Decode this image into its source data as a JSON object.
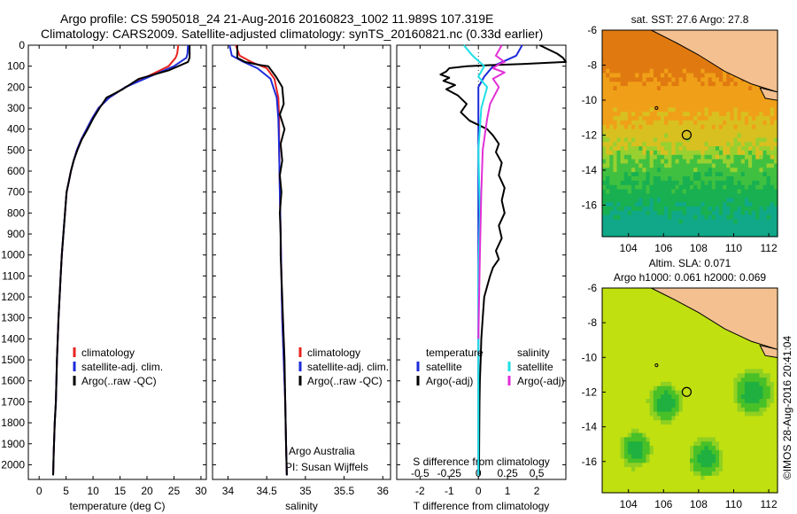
{
  "header": {
    "line1": "Argo profile: CS 5905018_24 21-Aug-2016 20160823_1002 11.989S 107.319E",
    "line2": "Climatology: CARS2009. Satellite-adjusted climatology: synTS_20160821.nc (0.33d earlier)"
  },
  "maps": {
    "sst_title": "sat. SST: 27.6 Argo: 27.8",
    "sla_title1": "Altim. SLA: 0.071",
    "sla_title2": "Argo h1000: 0.061 h2000: 0.069",
    "side_label": "©IMOS 28-Aug-2016 20:41:04",
    "lat_ticks": [
      -6,
      -8,
      -10,
      -12,
      -14,
      -16
    ],
    "lon_ticks": [
      104,
      106,
      108,
      110,
      112
    ],
    "float_position": {
      "lon": 107.319,
      "lat": -11.989
    }
  },
  "legend": {
    "climatology": "climatology",
    "satellite_adj": "satellite-adj. clim.",
    "argo_raw": "Argo(..raw -QC)",
    "temperature": "temperature",
    "salinity": "salinity",
    "satellite": "satellite",
    "argo_adj": "Argo(-adj)"
  },
  "annotations": {
    "argo_australia": "Argo Australia",
    "pi": "PI: Susan Wijffels"
  },
  "colors": {
    "climatology": "#e8231f",
    "satellite": "#1d2bd9",
    "argo": "#000000",
    "cyan": "#1fe0e6",
    "magenta": "#e22fd6"
  },
  "chart_data": [
    {
      "type": "line",
      "xlabel": "temperature (deg C)",
      "ylabel": "",
      "xlim": [
        -2,
        31
      ],
      "ylim": [
        2070,
        0
      ],
      "xticks": [
        0,
        5,
        10,
        15,
        20,
        25,
        30
      ],
      "yticks": [
        0,
        100,
        200,
        300,
        400,
        500,
        600,
        700,
        800,
        900,
        1000,
        1100,
        1200,
        1300,
        1400,
        1500,
        1600,
        1700,
        1800,
        1900,
        2000
      ],
      "series": [
        {
          "name": "climatology",
          "key": "clim",
          "x": [
            25.8,
            25.6,
            25.3,
            24,
            20,
            16,
            13,
            11,
            9.8,
            8.8,
            7.8,
            7,
            6.4,
            5.9,
            5.5,
            5.1,
            4.8,
            4.5,
            4.2,
            4,
            3.8,
            3.6,
            3.3,
            3.1,
            2.9,
            2.7,
            2.6
          ],
          "y": [
            0,
            40,
            60,
            100,
            150,
            200,
            250,
            300,
            350,
            400,
            450,
            500,
            550,
            600,
            650,
            700,
            800,
            900,
            1000,
            1100,
            1200,
            1300,
            1500,
            1700,
            1800,
            1950,
            2050
          ]
        },
        {
          "name": "satellite-adj. clim.",
          "key": "sat",
          "x": [
            27.6,
            27.5,
            27.3,
            25,
            20.5,
            16,
            13,
            11,
            9.8,
            8.8,
            7.8,
            7,
            6.4,
            5.9,
            5.5,
            5.1,
            4.8,
            4.5,
            4.2,
            4,
            3.8,
            3.6,
            3.3,
            3.1,
            2.9,
            2.7,
            2.6
          ],
          "y": [
            0,
            40,
            60,
            100,
            150,
            200,
            250,
            300,
            350,
            400,
            450,
            500,
            550,
            600,
            650,
            700,
            800,
            900,
            1000,
            1100,
            1200,
            1300,
            1500,
            1700,
            1800,
            1950,
            2050
          ]
        },
        {
          "name": "Argo(..raw -QC)",
          "key": "argo",
          "x": [
            27.9,
            27.9,
            27.6,
            24,
            18.5,
            15.5,
            12.5,
            11.2,
            10,
            9,
            7.9,
            7.1,
            6.4,
            5.9,
            5.5,
            5.1,
            4.8,
            4.5,
            4.2,
            4,
            3.8,
            3.6,
            3.3,
            3.1,
            2.9,
            2.7,
            2.6
          ],
          "y": [
            0,
            60,
            80,
            120,
            160,
            210,
            250,
            300,
            350,
            400,
            450,
            500,
            550,
            600,
            650,
            700,
            800,
            900,
            1000,
            1100,
            1200,
            1300,
            1500,
            1700,
            1800,
            1950,
            2050
          ]
        }
      ]
    },
    {
      "type": "line",
      "xlabel": "salinity",
      "ylabel": "",
      "xlim": [
        33.8,
        36.1
      ],
      "ylim": [
        2070,
        0
      ],
      "xticks": [
        34,
        34.5,
        35,
        35.5,
        36
      ],
      "series": [
        {
          "name": "climatology",
          "key": "clim",
          "x": [
            34.1,
            34.15,
            34.3,
            34.5,
            34.6,
            34.65,
            34.66,
            34.66,
            34.67,
            34.68,
            34.69,
            34.7,
            34.72,
            34.74,
            34.75,
            34.76
          ],
          "y": [
            0,
            50,
            80,
            110,
            160,
            250,
            350,
            500,
            700,
            900,
            1100,
            1300,
            1500,
            1700,
            1900,
            2050
          ]
        },
        {
          "name": "satellite-adj. clim.",
          "key": "sat",
          "x": [
            34.02,
            34.05,
            34.2,
            34.38,
            34.55,
            34.63,
            34.65,
            34.66,
            34.67,
            34.68,
            34.69,
            34.7,
            34.72,
            34.74,
            34.75,
            34.76
          ],
          "y": [
            0,
            50,
            80,
            110,
            160,
            250,
            350,
            500,
            700,
            900,
            1100,
            1300,
            1500,
            1700,
            1900,
            2050
          ]
        },
        {
          "name": "Argo(..raw -QC)",
          "key": "argo",
          "x": [
            34.12,
            34.12,
            34.22,
            34.42,
            34.52,
            34.62,
            34.7,
            34.72,
            34.67,
            34.73,
            34.68,
            34.7,
            34.67,
            34.69,
            34.67,
            34.68,
            34.68,
            34.69,
            34.7,
            34.71,
            34.73,
            34.74,
            34.75,
            34.76
          ],
          "y": [
            0,
            60,
            80,
            95,
            100,
            150,
            200,
            280,
            330,
            400,
            470,
            550,
            620,
            700,
            800,
            900,
            1000,
            1100,
            1200,
            1300,
            1500,
            1700,
            1900,
            2050
          ]
        }
      ]
    },
    {
      "type": "line",
      "xlabel": "T difference from climatology",
      "xlabel2": "S difference from climatology",
      "ylabel": "",
      "xlim": [
        -2.8,
        3
      ],
      "ylim": [
        2070,
        0
      ],
      "xticks": [
        -2,
        -1,
        0,
        1,
        2
      ],
      "xticks_s": [
        "-0.5",
        "-0.25",
        "0",
        "0.25",
        "0.5"
      ],
      "xticks_s_pos": [
        -2,
        -1,
        0,
        1,
        2
      ],
      "series": [
        {
          "name": "temperature satellite",
          "key": "sat",
          "x": [
            1.5,
            1.3,
            0.5,
            0.2,
            0,
            0,
            0,
            0,
            0,
            0,
            0,
            0
          ],
          "y": [
            0,
            50,
            100,
            150,
            200,
            300,
            500,
            800,
            1100,
            1400,
            1700,
            2050
          ]
        },
        {
          "name": "temperature Argo(-adj)",
          "key": "argo",
          "x": [
            2.1,
            2.7,
            2.9,
            3.0,
            1.5,
            0.4,
            -0.4,
            -1.0,
            -1.1,
            -1.3,
            -1.0,
            -1.2,
            -0.8,
            -1.1,
            -0.7,
            -0.4,
            -0.6,
            -0.3,
            0.3,
            0.5,
            0.7,
            0.6,
            0.8,
            0.7,
            0.9,
            0.8,
            0.9,
            0.7,
            0.8,
            0.6,
            0.7,
            0.5,
            0.4,
            0.3,
            0.2,
            0.15,
            0.1,
            0.08,
            0.05,
            0.04,
            0.03,
            0.02
          ],
          "y": [
            0,
            40,
            60,
            80,
            90,
            95,
            100,
            110,
            125,
            140,
            155,
            170,
            190,
            210,
            240,
            280,
            320,
            360,
            400,
            430,
            470,
            510,
            560,
            620,
            680,
            740,
            800,
            860,
            920,
            980,
            1020,
            1060,
            1100,
            1150,
            1200,
            1300,
            1400,
            1500,
            1600,
            1700,
            1850,
            2050
          ]
        },
        {
          "name": "salinity satellite",
          "key": "cyan",
          "x": [
            -0.5,
            -0.2,
            0.2,
            0,
            0.3,
            0.1,
            0,
            0.05,
            0,
            0,
            0,
            0
          ],
          "y": [
            0,
            50,
            100,
            150,
            200,
            300,
            500,
            800,
            1100,
            1400,
            1700,
            2050
          ]
        },
        {
          "name": "salinity Argo(-adj)",
          "key": "magenta",
          "x": [
            0.8,
            0.6,
            0.9,
            0.7,
            0.5,
            0.9,
            0.5,
            0.7,
            0.4,
            0.3,
            0.15,
            0.1,
            0.05,
            0
          ],
          "y": [
            0,
            50,
            80,
            90,
            110,
            130,
            160,
            200,
            280,
            350,
            500,
            700,
            1000,
            1400
          ]
        }
      ]
    }
  ]
}
